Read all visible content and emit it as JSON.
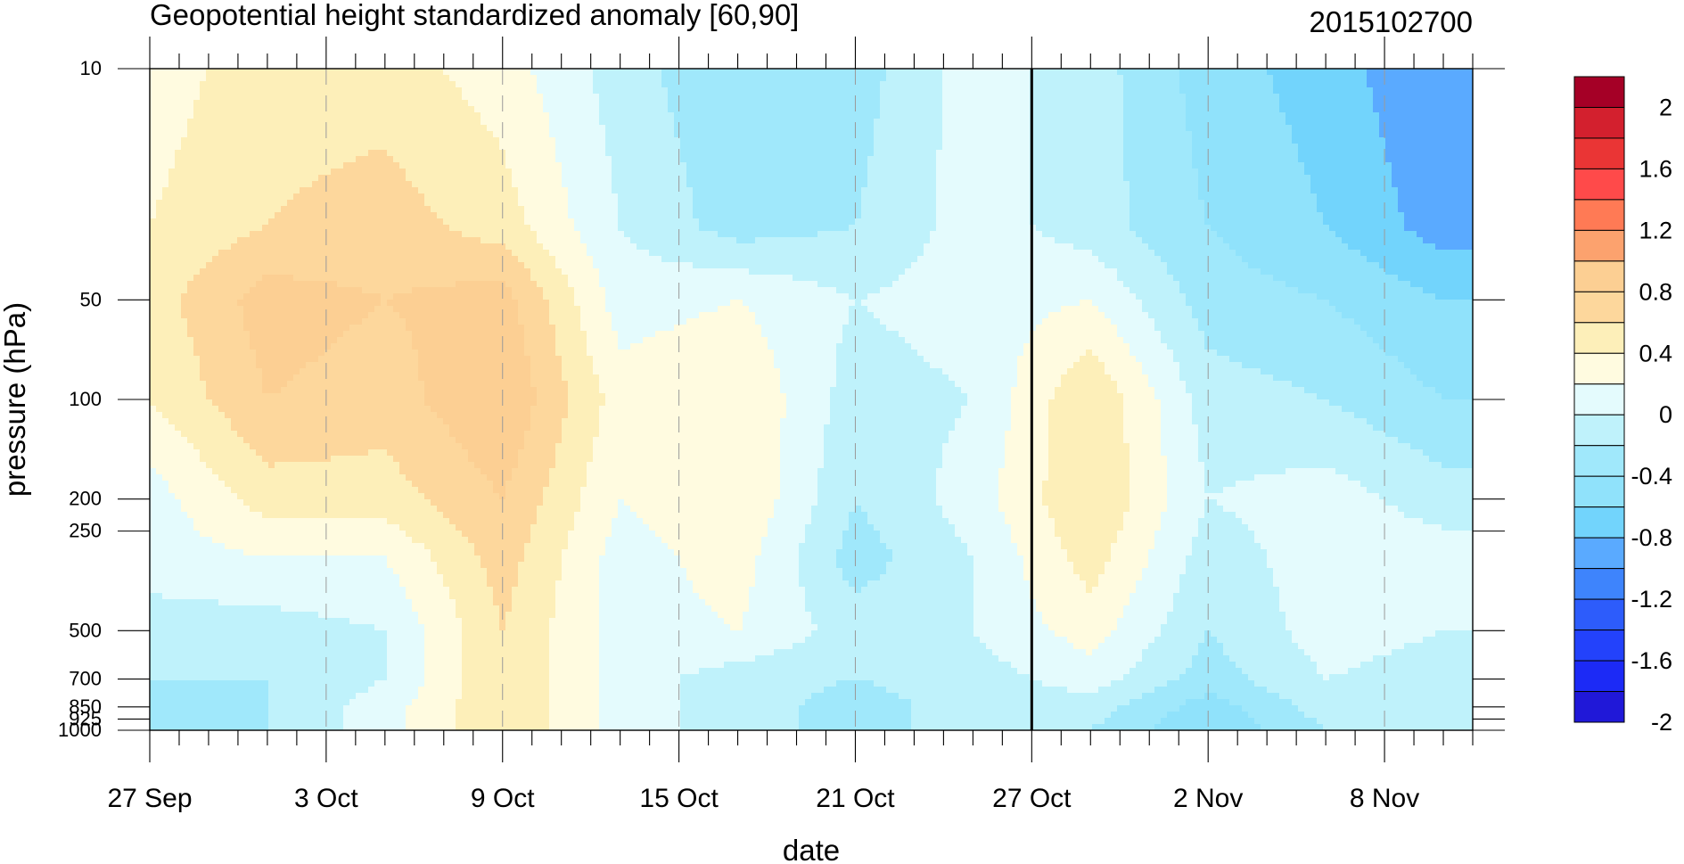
{
  "chart_data": {
    "type": "heatmap",
    "title": "Geopotential height standardized anomaly [60,90]",
    "date_label": "2015102700",
    "xlabel": "date",
    "ylabel": "pressure (hPa)",
    "x_tick_labels": [
      "27 Sep",
      "3 Oct",
      "9 Oct",
      "15 Oct",
      "21 Oct",
      "27 Oct",
      "2 Nov",
      "8 Nov"
    ],
    "x_range": [
      "2015-09-27",
      "2015-11-11"
    ],
    "y_axis": {
      "scale": "log",
      "reversed": true,
      "range": [
        1000,
        10
      ]
    },
    "y_tick_labels": [
      "10",
      "50",
      "100",
      "200",
      "250",
      "500",
      "700",
      "850",
      "925",
      "1000"
    ],
    "y_tick_values": [
      10,
      50,
      100,
      200,
      250,
      500,
      700,
      850,
      925,
      1000
    ],
    "vertical_marker_date": "2015-10-27",
    "colorbar": {
      "labels": [
        "2",
        "1.6",
        "1.2",
        "0.8",
        "0.4",
        "0",
        "-0.4",
        "-0.8",
        "-1.2",
        "-1.6",
        "-2"
      ],
      "levels": [
        2.2,
        2,
        1.8,
        1.6,
        1.4,
        1.2,
        1,
        0.8,
        0.6,
        0.4,
        0.2,
        0,
        -0.2,
        -0.4,
        -0.6,
        -0.8,
        -1,
        -1.2,
        -1.4,
        -1.6,
        -1.8,
        -2,
        -2.2
      ],
      "colors": [
        "#a50026",
        "#d3202e",
        "#ea3535",
        "#ff4a4a",
        "#ff7a55",
        "#fca26e",
        "#fccf93",
        "#fdd79c",
        "#fdefb9",
        "#fffbe0",
        "#e4fbfd",
        "#bff2fb",
        "#a0e8fb",
        "#90e2fb",
        "#72d4fc",
        "#5aaaff",
        "#3e84fc",
        "#2d5cfb",
        "#2342fb",
        "#1c2af6",
        "#2018d8"
      ]
    },
    "field_dates": [
      "2015-09-27",
      "2015-10-01",
      "2015-10-05",
      "2015-10-09",
      "2015-10-13",
      "2015-10-17",
      "2015-10-21",
      "2015-10-25",
      "2015-10-29",
      "2015-11-02",
      "2015-11-06",
      "2015-11-10"
    ],
    "field_levels_hPa": [
      10,
      30,
      50,
      100,
      200,
      300,
      500,
      700,
      850,
      1000
    ],
    "field_values": [
      [
        0.3,
        0.5,
        0.5,
        0.3,
        -0.1,
        -0.4,
        -0.3,
        0.1,
        -0.1,
        -0.5,
        -0.7,
        -1.0
      ],
      [
        0.4,
        0.6,
        0.7,
        0.5,
        0.0,
        -0.3,
        -0.2,
        0.1,
        -0.1,
        -0.4,
        -0.6,
        -0.9
      ],
      [
        0.5,
        0.9,
        0.8,
        0.9,
        0.1,
        0.2,
        0.0,
        0.1,
        0.2,
        -0.3,
        -0.4,
        -0.6
      ],
      [
        0.4,
        0.8,
        0.7,
        1.0,
        0.3,
        0.4,
        -0.1,
        0.0,
        0.6,
        -0.1,
        -0.2,
        -0.4
      ],
      [
        0.1,
        0.5,
        0.5,
        0.8,
        0.2,
        0.4,
        -0.2,
        0.1,
        0.6,
        0.0,
        0.1,
        -0.1
      ],
      [
        0.1,
        0.2,
        0.2,
        0.7,
        0.1,
        0.3,
        -0.3,
        0.0,
        0.5,
        -0.1,
        0.1,
        0.1
      ],
      [
        -0.1,
        -0.1,
        0.0,
        0.6,
        0.1,
        0.2,
        -0.1,
        0.0,
        0.3,
        -0.2,
        0.1,
        0.0
      ],
      [
        -0.2,
        -0.2,
        0.0,
        0.6,
        0.1,
        -0.1,
        -0.2,
        -0.1,
        0.1,
        -0.3,
        0.0,
        -0.1
      ],
      [
        -0.3,
        -0.2,
        0.1,
        0.6,
        0.1,
        -0.1,
        -0.3,
        -0.1,
        -0.1,
        -0.5,
        -0.1,
        -0.1
      ],
      [
        -0.3,
        -0.2,
        0.1,
        0.6,
        0.1,
        -0.1,
        -0.3,
        -0.1,
        -0.2,
        -0.6,
        -0.2,
        -0.2
      ]
    ]
  }
}
